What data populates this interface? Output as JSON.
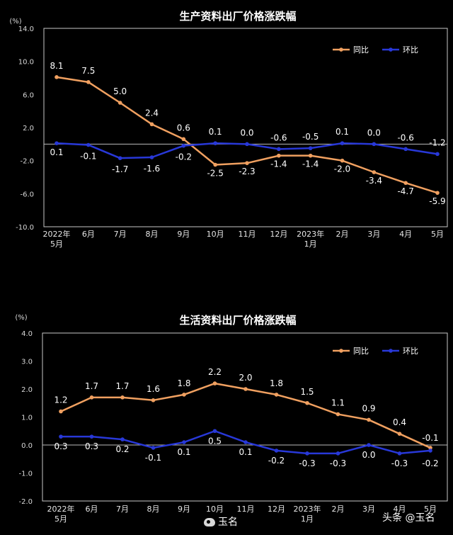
{
  "colors": {
    "yoy": "#f0a060",
    "mom": "#2838d8",
    "frame": "#c8c8c8"
  },
  "chart_data": [
    {
      "type": "line",
      "title": "生产资料出厂价格涨跌幅",
      "unit_label": "(%)",
      "ylim": [
        -10.0,
        14.0
      ],
      "y_ticks": [
        "14.0",
        "10.0",
        "6.0",
        "2.0",
        "-2.0",
        "-6.0",
        "-10.0"
      ],
      "y_tick_values": [
        14,
        10,
        6,
        2,
        -2,
        -6,
        -10
      ],
      "categories": [
        [
          "2022年",
          "5月"
        ],
        [
          "6月"
        ],
        [
          "7月"
        ],
        [
          "8月"
        ],
        [
          "9月"
        ],
        [
          "10月"
        ],
        [
          "11月"
        ],
        [
          "12月"
        ],
        [
          "2023年",
          "1月"
        ],
        [
          "2月"
        ],
        [
          "3月"
        ],
        [
          "4月"
        ],
        [
          "5月"
        ]
      ],
      "legend_position": "top-right",
      "series": [
        {
          "name": "同比",
          "key": "yoy",
          "values": [
            8.1,
            7.5,
            5.0,
            2.4,
            0.6,
            -2.5,
            -2.3,
            -1.4,
            -1.4,
            -2.0,
            -3.4,
            -4.7,
            -5.9
          ],
          "labels": [
            "8.1",
            "7.5",
            "5.0",
            "2.4",
            "0.6",
            "-2.5",
            "-2.3",
            "-1.4",
            "-1.4",
            "-2.0",
            "-3.4",
            "-4.7",
            "-5.9"
          ]
        },
        {
          "name": "环比",
          "key": "mom",
          "values": [
            0.1,
            -0.1,
            -1.7,
            -1.6,
            -0.2,
            0.1,
            0.0,
            -0.6,
            -0.5,
            0.1,
            0.0,
            -0.6,
            -1.2
          ],
          "labels": [
            "0.1",
            "-0.1",
            "-1.7",
            "-1.6",
            "-0.2",
            "0.1",
            "0.0",
            "-0.6",
            "-0.5",
            "0.1",
            "0.0",
            "-0.6",
            "-1.2"
          ]
        }
      ]
    },
    {
      "type": "line",
      "title": "生活资料出厂价格涨跌幅",
      "unit_label": "(%)",
      "ylim": [
        -2.0,
        4.0
      ],
      "y_ticks": [
        "4.0",
        "3.0",
        "2.0",
        "1.0",
        "0.0",
        "-1.0",
        "-2.0"
      ],
      "y_tick_values": [
        4,
        3,
        2,
        1,
        0,
        -1,
        -2
      ],
      "categories": [
        [
          "2022年",
          "5月"
        ],
        [
          "6月"
        ],
        [
          "7月"
        ],
        [
          "8月"
        ],
        [
          "9月"
        ],
        [
          "10月"
        ],
        [
          "11月"
        ],
        [
          "12月"
        ],
        [
          "2023年",
          "1月"
        ],
        [
          "2月"
        ],
        [
          "3月"
        ],
        [
          "4月"
        ],
        [
          "5月"
        ]
      ],
      "legend_position": "top-right",
      "series": [
        {
          "name": "同比",
          "key": "yoy",
          "values": [
            1.2,
            1.7,
            1.7,
            1.6,
            1.8,
            2.2,
            2.0,
            1.8,
            1.5,
            1.1,
            0.9,
            0.4,
            -0.1
          ],
          "labels": [
            "1.2",
            "1.7",
            "1.7",
            "1.6",
            "1.8",
            "2.2",
            "2.0",
            "1.8",
            "1.5",
            "1.1",
            "0.9",
            "0.4",
            "-0.1"
          ]
        },
        {
          "name": "环比",
          "key": "mom",
          "values": [
            0.3,
            0.3,
            0.2,
            -0.1,
            0.1,
            0.5,
            0.1,
            -0.2,
            -0.3,
            -0.3,
            0.0,
            -0.3,
            -0.2
          ],
          "labels": [
            "0.3",
            "0.3",
            "0.2",
            "-0.1",
            "0.1",
            "0.5",
            "0.1",
            "-0.2",
            "-0.3",
            "-0.3",
            "0.0",
            "-0.3",
            "-0.2"
          ]
        }
      ]
    }
  ],
  "watermarks": {
    "weibo": "玉名",
    "toutiao": "头条 @玉名"
  }
}
